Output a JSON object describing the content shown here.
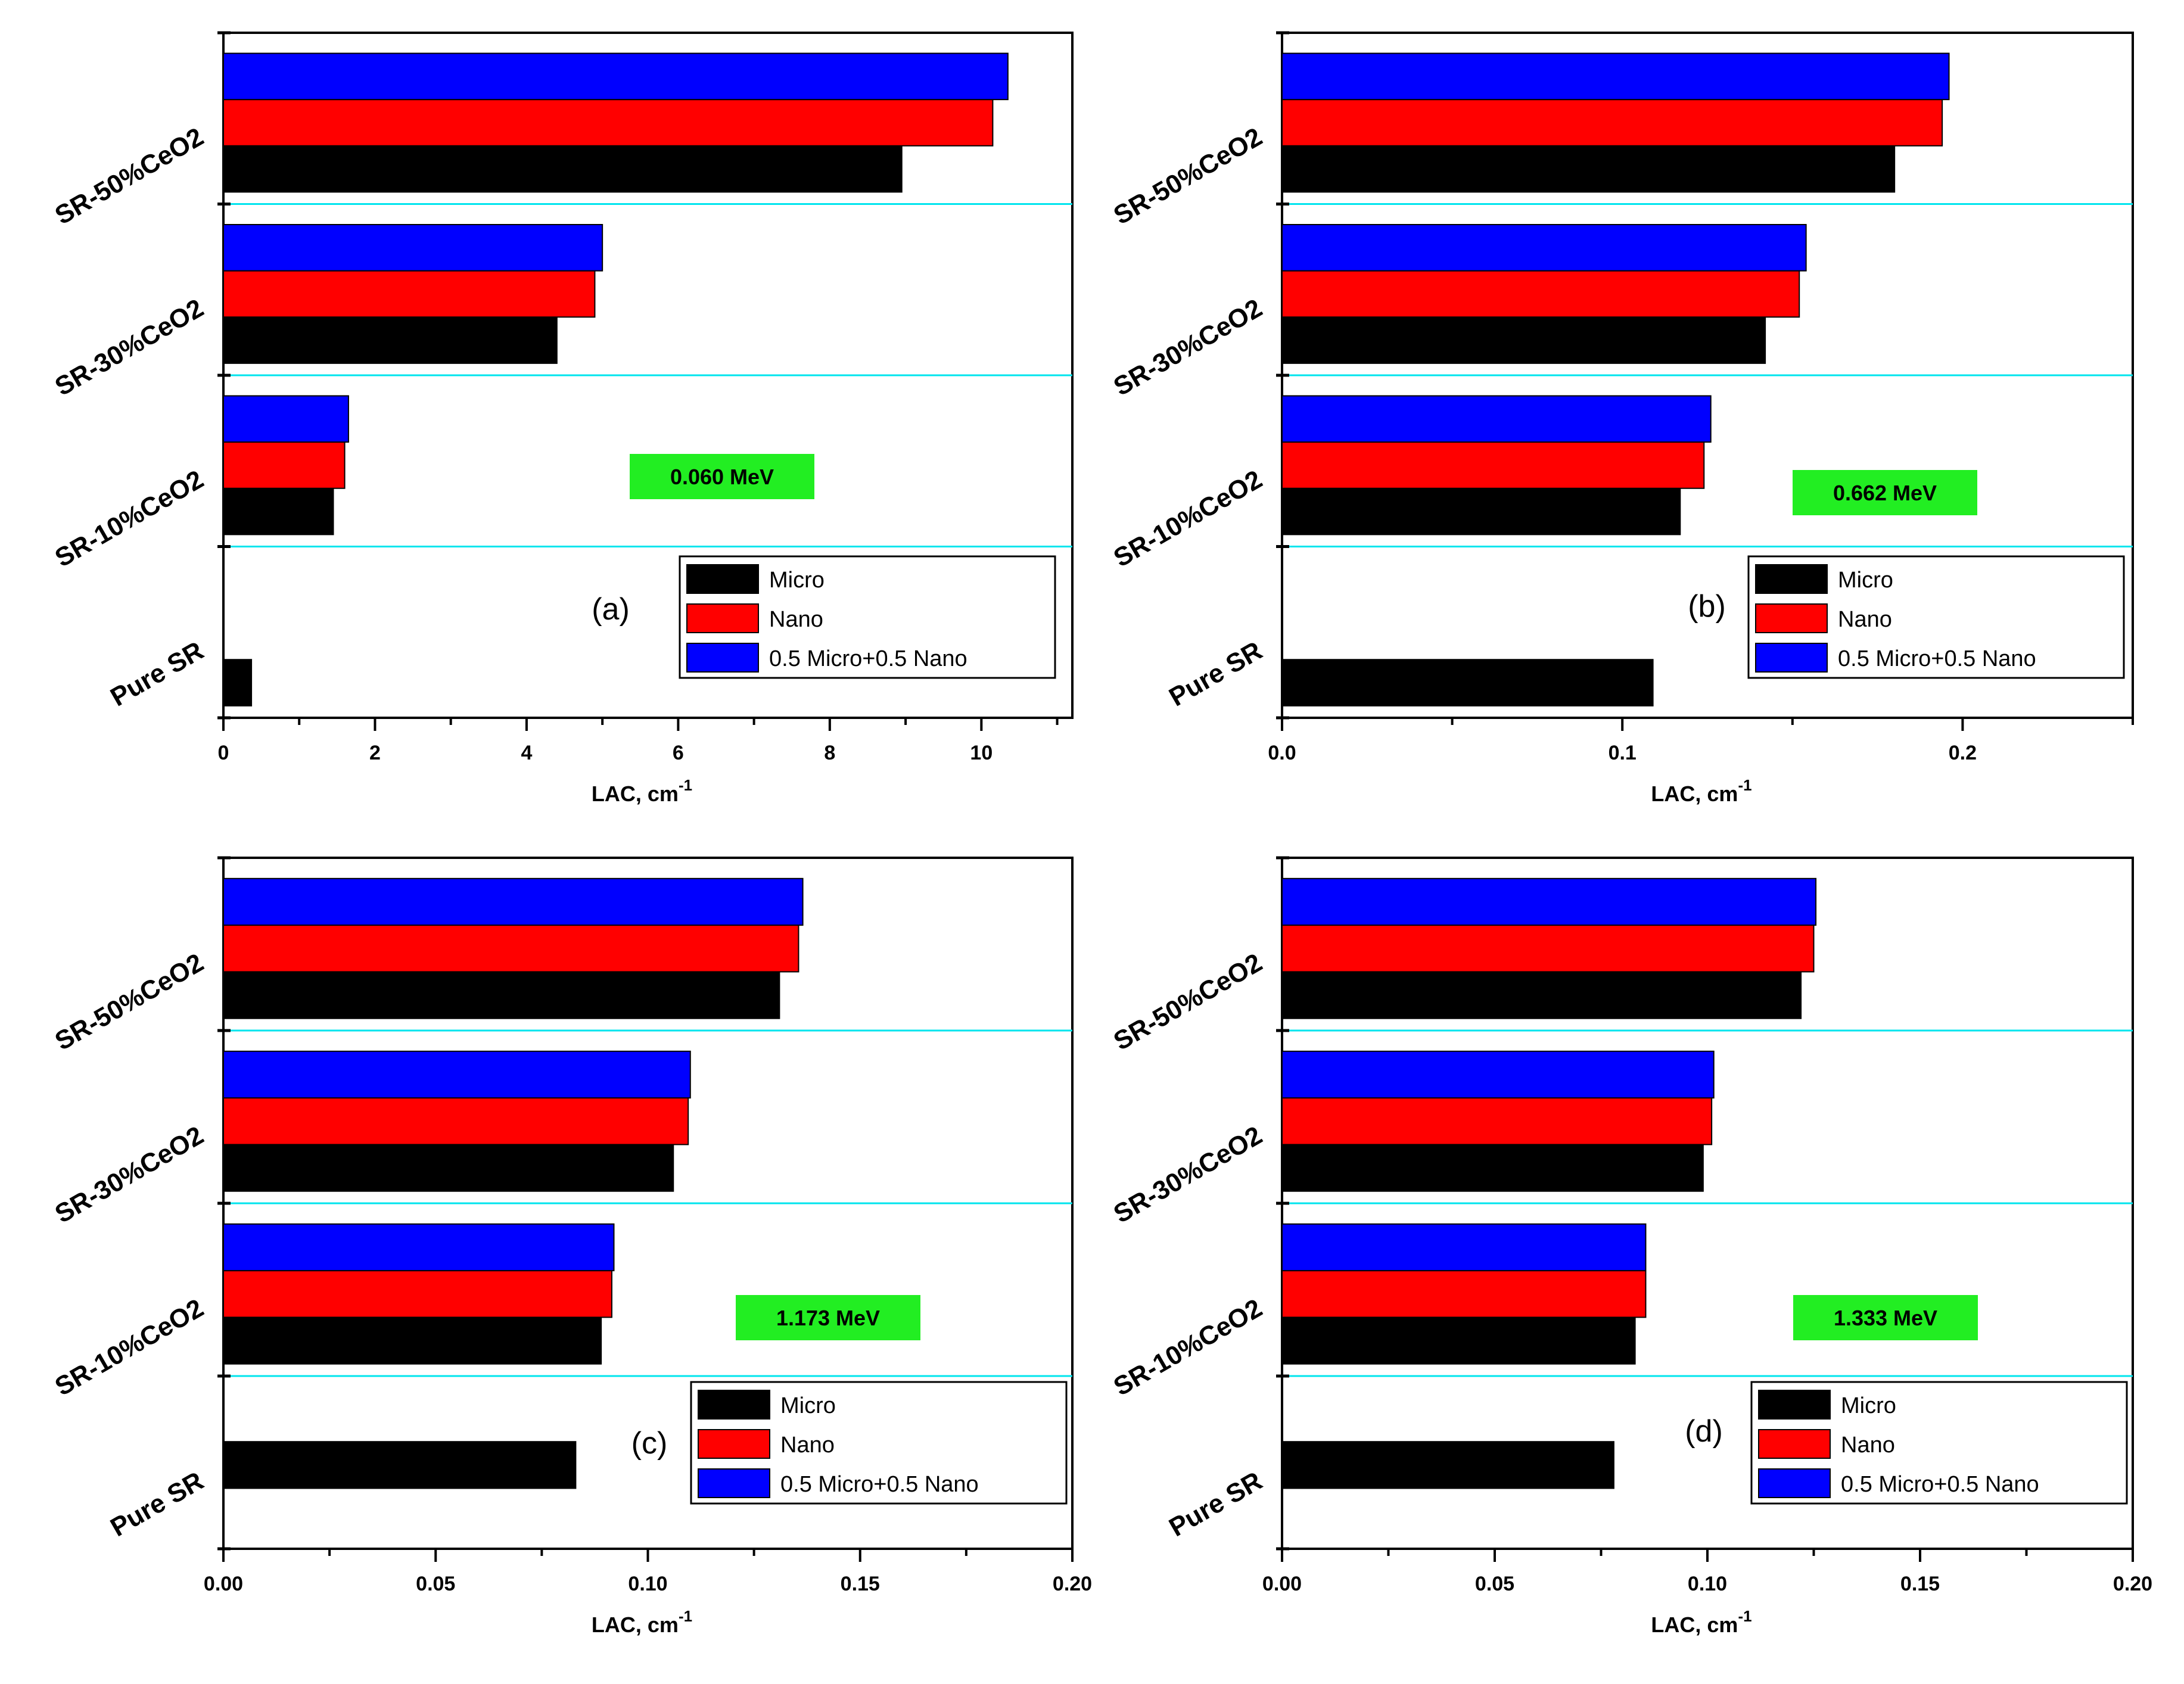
{
  "colors": {
    "micro": "#000000",
    "nano": "#ff0000",
    "mix": "#0000ff",
    "separator": "#00e5ee",
    "energy_badge": "#22ee22",
    "axis": "#000000"
  },
  "chart_data": [
    {
      "type": "bar",
      "orientation": "horizontal",
      "panel_label": "(a)",
      "energy_label": "0.060 MeV",
      "xlabel": "LAC, cm",
      "xlabel_superscript": "-1",
      "xlim": [
        0,
        11.2
      ],
      "xticks": [
        0,
        2,
        4,
        6,
        8,
        10
      ],
      "xtick_labels": [
        "0",
        "2",
        "4",
        "6",
        "8",
        "10"
      ],
      "categories": [
        "Pure SR",
        "SR-10%CeO2",
        "SR-30%CeO2",
        "SR-50%CeO2"
      ],
      "series": [
        {
          "name": "Micro",
          "values": [
            0.37,
            1.45,
            4.4,
            8.95
          ]
        },
        {
          "name": "Nano",
          "values": [
            null,
            1.6,
            4.9,
            10.15
          ]
        },
        {
          "name": "0.5 Micro+0.5 Nano",
          "values": [
            null,
            1.65,
            5.0,
            10.35
          ]
        }
      ],
      "legend": [
        "Micro",
        "Nano",
        "0.5 Micro+0.5 Nano"
      ],
      "legend_position": "lower-right"
    },
    {
      "type": "bar",
      "orientation": "horizontal",
      "panel_label": "(b)",
      "energy_label": "0.662 MeV",
      "xlabel": "LAC, cm",
      "xlabel_superscript": "-1",
      "xlim": [
        0,
        0.25
      ],
      "xticks": [
        0.0,
        0.1,
        0.2
      ],
      "xtick_labels": [
        "0.0",
        "0.1",
        "0.2"
      ],
      "categories": [
        "Pure SR",
        "SR-10%CeO2",
        "SR-30%CeO2",
        "SR-50%CeO2"
      ],
      "series": [
        {
          "name": "Micro",
          "values": [
            0.109,
            0.117,
            0.142,
            0.18
          ]
        },
        {
          "name": "Nano",
          "values": [
            null,
            0.124,
            0.152,
            0.194
          ]
        },
        {
          "name": "0.5 Micro+0.5 Nano",
          "values": [
            null,
            0.126,
            0.154,
            0.196
          ]
        }
      ],
      "legend": [
        "Micro",
        "Nano",
        "0.5 Micro+0.5 Nano"
      ],
      "legend_position": "lower-right"
    },
    {
      "type": "bar",
      "orientation": "horizontal",
      "panel_label": "(c)",
      "energy_label": "1.173 MeV",
      "xlabel": "LAC, cm",
      "xlabel_superscript": "-1",
      "xlim": [
        0,
        0.2
      ],
      "xticks": [
        0.0,
        0.05,
        0.1,
        0.15,
        0.2
      ],
      "xtick_labels": [
        "0.00",
        "0.05",
        "0.10",
        "0.15",
        "0.20"
      ],
      "categories": [
        "Pure SR",
        "SR-10%CeO2",
        "SR-30%CeO2",
        "SR-50%CeO2"
      ],
      "series": [
        {
          "name": "Micro",
          "values": [
            0.083,
            0.089,
            0.106,
            0.131
          ]
        },
        {
          "name": "Nano",
          "values": [
            null,
            0.0915,
            0.1095,
            0.1355
          ]
        },
        {
          "name": "0.5 Micro+0.5 Nano",
          "values": [
            null,
            0.092,
            0.11,
            0.1365
          ]
        }
      ],
      "legend": [
        "Micro",
        "Nano",
        "0.5 Micro+0.5 Nano"
      ],
      "legend_position": "lower-right"
    },
    {
      "type": "bar",
      "orientation": "horizontal",
      "panel_label": "(d)",
      "energy_label": "1.333 MeV",
      "xlabel": "LAC, cm",
      "xlabel_superscript": "-1",
      "xlim": [
        0,
        0.2
      ],
      "xticks": [
        0.0,
        0.05,
        0.1,
        0.15,
        0.2
      ],
      "xtick_labels": [
        "0.00",
        "0.05",
        "0.10",
        "0.15",
        "0.20"
      ],
      "categories": [
        "Pure SR",
        "SR-10%CeO2",
        "SR-30%CeO2",
        "SR-50%CeO2"
      ],
      "series": [
        {
          "name": "Micro",
          "values": [
            0.078,
            0.083,
            0.099,
            0.122
          ]
        },
        {
          "name": "Nano",
          "values": [
            null,
            0.0855,
            0.101,
            0.125
          ]
        },
        {
          "name": "0.5 Micro+0.5 Nano",
          "values": [
            null,
            0.0855,
            0.1015,
            0.1255
          ]
        }
      ],
      "legend": [
        "Micro",
        "Nano",
        "0.5 Micro+0.5 Nano"
      ],
      "legend_position": "lower-right"
    }
  ]
}
